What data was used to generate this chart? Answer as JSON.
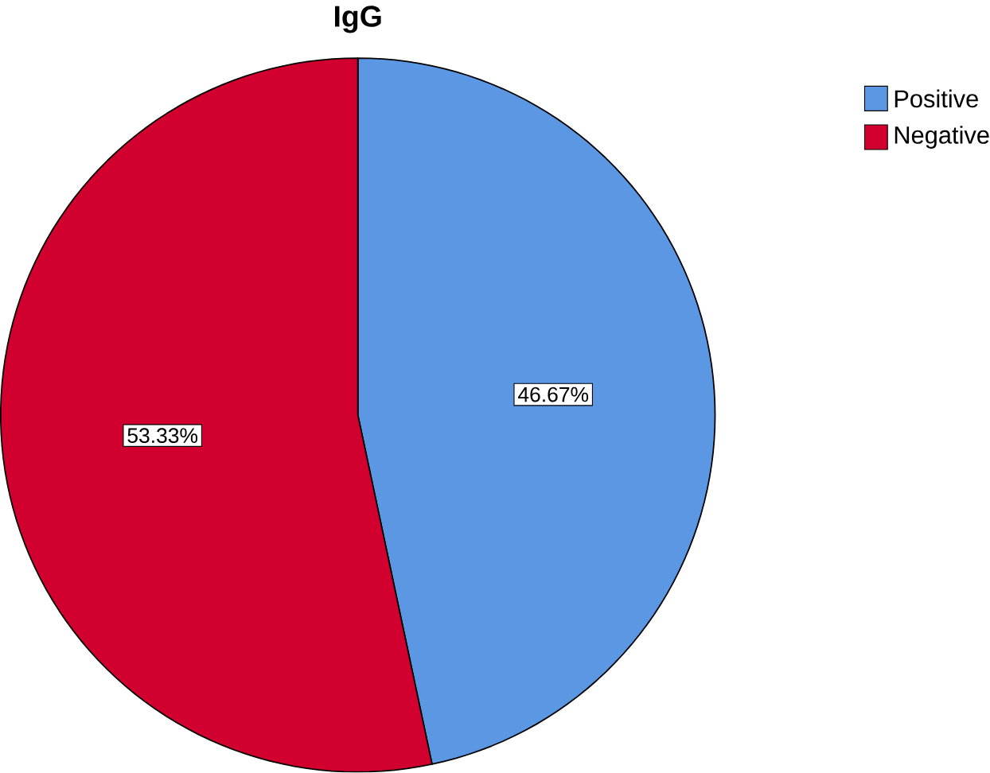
{
  "chart_data": {
    "type": "pie",
    "title": "IgG",
    "categories": [
      "Positive",
      "Negative"
    ],
    "values": [
      46.67,
      53.33
    ],
    "value_labels": [
      "46.67%",
      "53.33%"
    ],
    "colors": [
      "#5b97e3",
      "#d2002f"
    ],
    "legend": "top right"
  }
}
